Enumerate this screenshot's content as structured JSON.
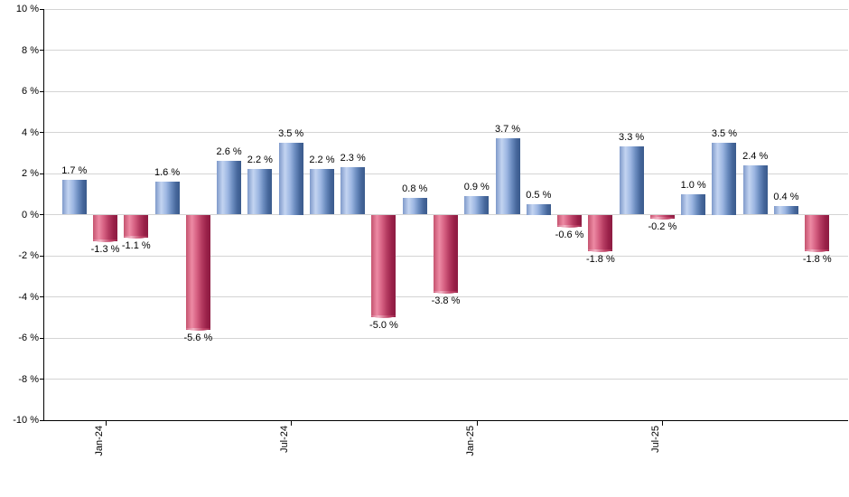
{
  "chart_data": {
    "type": "bar",
    "title": "",
    "xlabel": "",
    "ylabel": "",
    "ylim": [
      -10,
      10
    ],
    "y_tick_step": 2,
    "grid": true,
    "legend_position": "none",
    "value_label_format": "0.0 %",
    "y_ticks": [
      {
        "value": 10,
        "label": "10 %"
      },
      {
        "value": 8,
        "label": "8 %"
      },
      {
        "value": 6,
        "label": "6 %"
      },
      {
        "value": 4,
        "label": "4 %"
      },
      {
        "value": 2,
        "label": "2 %"
      },
      {
        "value": 0,
        "label": "0 %"
      },
      {
        "value": -2,
        "label": "-2 %"
      },
      {
        "value": -4,
        "label": "-4 %"
      },
      {
        "value": -6,
        "label": "-6 %"
      },
      {
        "value": -8,
        "label": "-8 %"
      },
      {
        "value": -10,
        "label": "-10 %"
      }
    ],
    "x_ticks": [
      {
        "label": "Jan-24",
        "bar_index": 1
      },
      {
        "label": "Jul-24",
        "bar_index": 7
      },
      {
        "label": "Jan-25",
        "bar_index": 13
      },
      {
        "label": "Jul-25",
        "bar_index": 19
      }
    ],
    "bars": [
      {
        "value": 1.7,
        "label": "1.7 %"
      },
      {
        "value": -1.3,
        "label": "-1.3 %"
      },
      {
        "value": -1.1,
        "label": "-1.1 %"
      },
      {
        "value": 1.6,
        "label": "1.6 %"
      },
      {
        "value": -5.6,
        "label": "-5.6 %"
      },
      {
        "value": 2.6,
        "label": "2.6 %"
      },
      {
        "value": 2.2,
        "label": "2.2 %"
      },
      {
        "value": 3.5,
        "label": "3.5 %"
      },
      {
        "value": 2.2,
        "label": "2.2 %"
      },
      {
        "value": 2.3,
        "label": "2.3 %"
      },
      {
        "value": -5.0,
        "label": "-5.0 %"
      },
      {
        "value": 0.8,
        "label": "0.8 %"
      },
      {
        "value": -3.8,
        "label": "-3.8 %"
      },
      {
        "value": 0.9,
        "label": "0.9 %"
      },
      {
        "value": 3.7,
        "label": "3.7 %"
      },
      {
        "value": 0.5,
        "label": "0.5 %"
      },
      {
        "value": -0.6,
        "label": "-0.6 %"
      },
      {
        "value": -1.8,
        "label": "-1.8 %"
      },
      {
        "value": 3.3,
        "label": "3.3 %"
      },
      {
        "value": -0.2,
        "label": "-0.2 %"
      },
      {
        "value": 1.0,
        "label": "1.0 %"
      },
      {
        "value": 3.5,
        "label": "3.5 %"
      },
      {
        "value": 2.4,
        "label": "2.4 %"
      },
      {
        "value": 0.4,
        "label": "0.4 %"
      },
      {
        "value": -1.8,
        "label": "-1.8 %"
      }
    ],
    "colors": {
      "background": "#ffffff",
      "positive_base": "#6f8fc3",
      "negative_base": "#b84868",
      "positive_gradient": [
        "#7f9aca",
        "#c3d4f1",
        "#9db7e2",
        "#6c8dc0",
        "#46679b",
        "#3a5a8c"
      ],
      "negative_gradient": [
        "#c5536f",
        "#ed8aa4",
        "#d55f81",
        "#b43a60",
        "#992048",
        "#8c1c42"
      ],
      "negative_cap": [
        "#d8718e",
        "#f2b3c4",
        "#c04468",
        "#a52c52"
      ],
      "grid": "#d4d4d4",
      "axis": "#000000",
      "text": "#000000"
    }
  }
}
